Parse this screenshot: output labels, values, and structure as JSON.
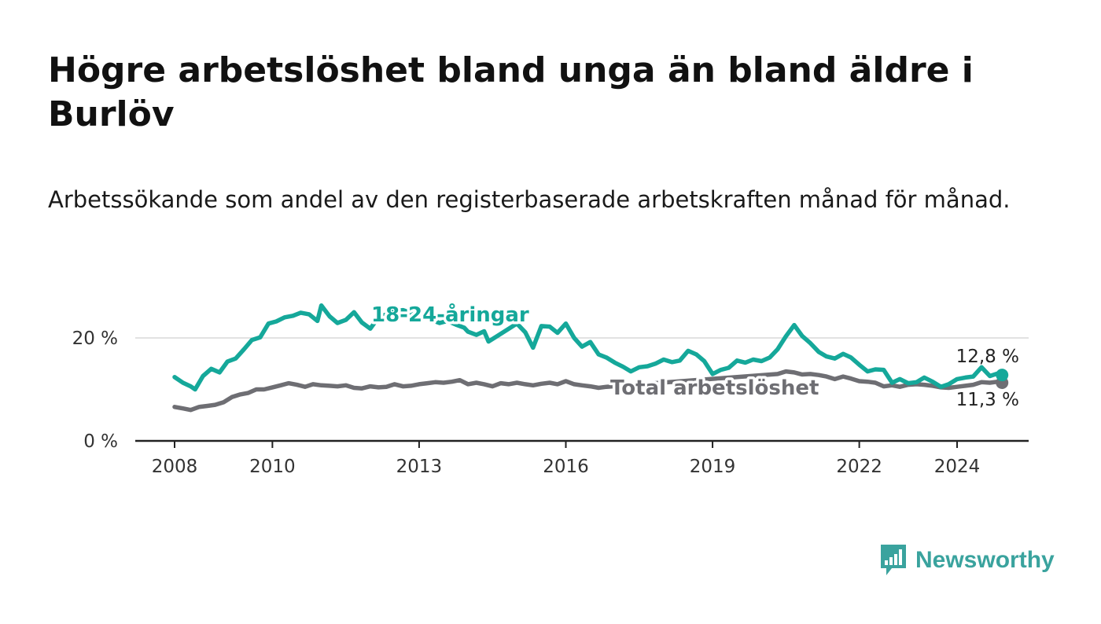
{
  "title": "Högre arbetslöshet bland unga än bland äldre i Burlöv",
  "subtitle": "Arbetssökande som andel av den registerbaserade arbetskraften månad för månad.",
  "brand": "Newsworthy",
  "colors": {
    "youth": "#15a89a",
    "total": "#6e6e73",
    "axis": "#222222",
    "grid": "#d9d9d9"
  },
  "chart_data": {
    "type": "line",
    "x_unit": "year",
    "xlim": [
      2007.2,
      2025.4
    ],
    "ylim": [
      0,
      28
    ],
    "grid": true,
    "y_ticks": [
      {
        "value": 0,
        "label": "0 %"
      },
      {
        "value": 20,
        "label": "20 %"
      }
    ],
    "x_ticks": [
      {
        "value": 2008,
        "label": "2008"
      },
      {
        "value": 2010,
        "label": "2010"
      },
      {
        "value": 2013,
        "label": "2013"
      },
      {
        "value": 2016,
        "label": "2016"
      },
      {
        "value": 2019,
        "label": "2019"
      },
      {
        "value": 2022,
        "label": "2022"
      },
      {
        "value": 2024,
        "label": "2024"
      }
    ],
    "series": [
      {
        "name": "18-24-åringar",
        "color_key": "youth",
        "end_label": "12,8 %",
        "points": [
          [
            2008.0,
            12.4
          ],
          [
            2008.17,
            11.3
          ],
          [
            2008.33,
            10.6
          ],
          [
            2008.42,
            10.0
          ],
          [
            2008.58,
            12.6
          ],
          [
            2008.75,
            14.0
          ],
          [
            2008.92,
            13.3
          ],
          [
            2009.08,
            15.4
          ],
          [
            2009.25,
            16.0
          ],
          [
            2009.42,
            17.8
          ],
          [
            2009.58,
            19.6
          ],
          [
            2009.75,
            20.1
          ],
          [
            2009.92,
            22.8
          ],
          [
            2010.08,
            23.2
          ],
          [
            2010.25,
            24.0
          ],
          [
            2010.42,
            24.3
          ],
          [
            2010.58,
            24.9
          ],
          [
            2010.75,
            24.6
          ],
          [
            2010.92,
            23.3
          ],
          [
            2011.0,
            26.3
          ],
          [
            2011.17,
            24.2
          ],
          [
            2011.33,
            22.9
          ],
          [
            2011.5,
            23.5
          ],
          [
            2011.67,
            25.0
          ],
          [
            2011.83,
            23.0
          ],
          [
            2012.0,
            21.8
          ],
          [
            2012.17,
            24.0
          ],
          [
            2012.33,
            24.6
          ],
          [
            2012.5,
            25.2
          ],
          [
            2012.67,
            25.4
          ],
          [
            2013.25,
            23.5
          ],
          [
            2013.42,
            22.9
          ],
          [
            2013.58,
            23.3
          ],
          [
            2013.75,
            22.6
          ],
          [
            2013.92,
            22.0
          ],
          [
            2014.0,
            21.2
          ],
          [
            2014.17,
            20.6
          ],
          [
            2014.33,
            21.3
          ],
          [
            2014.42,
            19.3
          ],
          [
            2015.0,
            22.8
          ],
          [
            2015.17,
            21.1
          ],
          [
            2015.33,
            18.1
          ],
          [
            2015.5,
            22.3
          ],
          [
            2015.67,
            22.2
          ],
          [
            2015.83,
            21.0
          ],
          [
            2016.0,
            22.8
          ],
          [
            2016.17,
            20.0
          ],
          [
            2016.33,
            18.3
          ],
          [
            2016.5,
            19.2
          ],
          [
            2016.67,
            16.8
          ],
          [
            2016.83,
            16.2
          ],
          [
            2017.0,
            15.2
          ],
          [
            2017.17,
            14.4
          ],
          [
            2017.33,
            13.5
          ],
          [
            2017.5,
            14.3
          ],
          [
            2017.67,
            14.5
          ],
          [
            2017.83,
            15.0
          ],
          [
            2018.0,
            15.8
          ],
          [
            2018.17,
            15.3
          ],
          [
            2018.33,
            15.6
          ],
          [
            2018.5,
            17.5
          ],
          [
            2018.67,
            16.8
          ],
          [
            2018.83,
            15.5
          ],
          [
            2019.0,
            13.0
          ],
          [
            2019.17,
            13.8
          ],
          [
            2019.33,
            14.2
          ],
          [
            2019.5,
            15.6
          ],
          [
            2019.67,
            15.2
          ],
          [
            2019.83,
            15.8
          ],
          [
            2020.0,
            15.5
          ],
          [
            2020.17,
            16.2
          ],
          [
            2020.33,
            17.8
          ],
          [
            2020.5,
            20.3
          ],
          [
            2020.67,
            22.5
          ],
          [
            2020.83,
            20.4
          ],
          [
            2021.0,
            19.0
          ],
          [
            2021.17,
            17.3
          ],
          [
            2021.33,
            16.4
          ],
          [
            2021.5,
            16.0
          ],
          [
            2021.67,
            16.9
          ],
          [
            2021.83,
            16.2
          ],
          [
            2022.0,
            14.8
          ],
          [
            2022.17,
            13.5
          ],
          [
            2022.33,
            13.9
          ],
          [
            2022.5,
            13.8
          ],
          [
            2022.67,
            11.3
          ],
          [
            2022.83,
            12.0
          ],
          [
            2023.0,
            11.2
          ],
          [
            2023.17,
            11.4
          ],
          [
            2023.33,
            12.3
          ],
          [
            2023.5,
            11.5
          ],
          [
            2023.67,
            10.5
          ],
          [
            2023.83,
            11.0
          ],
          [
            2024.0,
            12.0
          ],
          [
            2024.17,
            12.3
          ],
          [
            2024.33,
            12.5
          ],
          [
            2024.5,
            14.3
          ],
          [
            2024.67,
            12.6
          ],
          [
            2024.83,
            13.1
          ],
          [
            2024.92,
            12.8
          ]
        ]
      },
      {
        "name": "Total arbetslöshet",
        "color_key": "total",
        "end_label": "11,3 %",
        "points": [
          [
            2008.0,
            6.6
          ],
          [
            2008.17,
            6.3
          ],
          [
            2008.33,
            6.0
          ],
          [
            2008.5,
            6.6
          ],
          [
            2008.67,
            6.8
          ],
          [
            2008.83,
            7.0
          ],
          [
            2009.0,
            7.5
          ],
          [
            2009.17,
            8.5
          ],
          [
            2009.33,
            9.0
          ],
          [
            2009.5,
            9.3
          ],
          [
            2009.67,
            10.0
          ],
          [
            2009.83,
            10.0
          ],
          [
            2010.0,
            10.4
          ],
          [
            2010.17,
            10.8
          ],
          [
            2010.33,
            11.2
          ],
          [
            2010.5,
            10.9
          ],
          [
            2010.67,
            10.5
          ],
          [
            2010.83,
            11.0
          ],
          [
            2011.0,
            10.8
          ],
          [
            2011.17,
            10.7
          ],
          [
            2011.33,
            10.6
          ],
          [
            2011.5,
            10.8
          ],
          [
            2011.67,
            10.3
          ],
          [
            2011.83,
            10.2
          ],
          [
            2012.0,
            10.6
          ],
          [
            2012.17,
            10.4
          ],
          [
            2012.33,
            10.5
          ],
          [
            2012.5,
            11.0
          ],
          [
            2012.67,
            10.6
          ],
          [
            2012.83,
            10.7
          ],
          [
            2013.0,
            11.0
          ],
          [
            2013.17,
            11.2
          ],
          [
            2013.33,
            11.4
          ],
          [
            2013.5,
            11.3
          ],
          [
            2013.67,
            11.5
          ],
          [
            2013.83,
            11.8
          ],
          [
            2014.0,
            11.0
          ],
          [
            2014.17,
            11.3
          ],
          [
            2014.33,
            11.0
          ],
          [
            2014.5,
            10.6
          ],
          [
            2014.67,
            11.2
          ],
          [
            2014.83,
            11.0
          ],
          [
            2015.0,
            11.3
          ],
          [
            2015.17,
            11.0
          ],
          [
            2015.33,
            10.8
          ],
          [
            2015.5,
            11.1
          ],
          [
            2015.67,
            11.3
          ],
          [
            2015.83,
            11.0
          ],
          [
            2016.0,
            11.6
          ],
          [
            2016.17,
            11.0
          ],
          [
            2016.33,
            10.8
          ],
          [
            2016.5,
            10.6
          ],
          [
            2016.67,
            10.3
          ],
          [
            2016.83,
            10.5
          ],
          [
            2020.33,
            13.0
          ],
          [
            2020.5,
            13.5
          ],
          [
            2020.67,
            13.3
          ],
          [
            2020.83,
            12.9
          ],
          [
            2021.0,
            13.0
          ],
          [
            2021.17,
            12.8
          ],
          [
            2021.33,
            12.5
          ],
          [
            2021.5,
            12.0
          ],
          [
            2021.67,
            12.5
          ],
          [
            2021.83,
            12.1
          ],
          [
            2022.0,
            11.6
          ],
          [
            2022.17,
            11.5
          ],
          [
            2022.33,
            11.3
          ],
          [
            2022.5,
            10.6
          ],
          [
            2022.67,
            10.8
          ],
          [
            2022.83,
            10.5
          ],
          [
            2023.0,
            10.9
          ],
          [
            2023.17,
            11.0
          ],
          [
            2023.33,
            10.9
          ],
          [
            2023.5,
            10.7
          ],
          [
            2023.67,
            10.4
          ],
          [
            2023.83,
            10.3
          ],
          [
            2024.0,
            10.5
          ],
          [
            2024.17,
            10.7
          ],
          [
            2024.33,
            10.9
          ],
          [
            2024.5,
            11.4
          ],
          [
            2024.67,
            11.3
          ],
          [
            2024.83,
            11.5
          ],
          [
            2024.92,
            11.3
          ]
        ]
      }
    ]
  }
}
